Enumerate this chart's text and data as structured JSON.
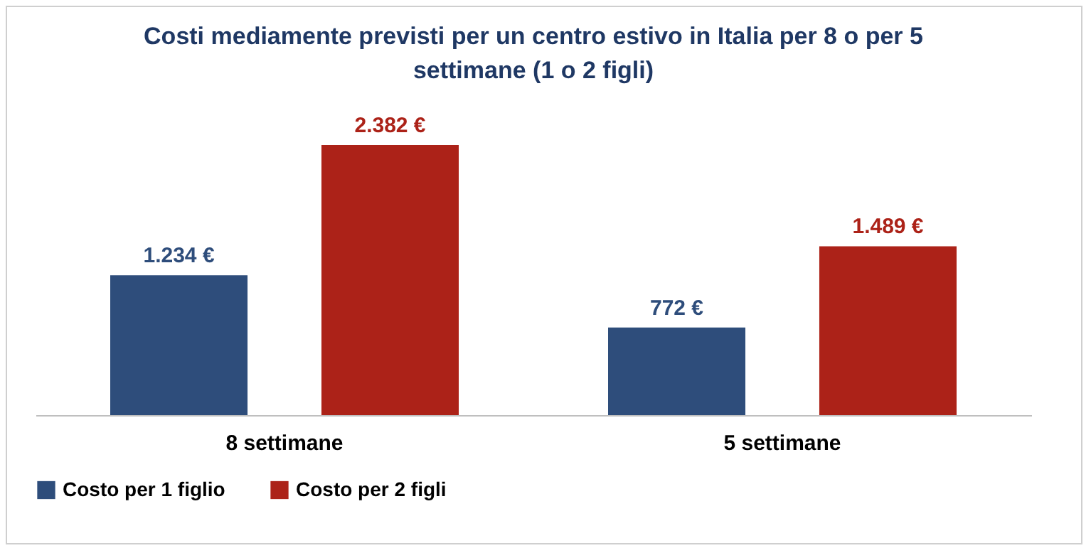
{
  "chart_data": {
    "type": "bar",
    "title": "Costi mediamente previsti per un centro estivo in Italia per 8 o per 5 settimane (1 o 2 figli)",
    "categories": [
      "8 settimane",
      "5 settimane"
    ],
    "series": [
      {
        "name": "Costo per 1 figlio",
        "color": "#2e4d7b",
        "values": [
          1234,
          772
        ],
        "value_labels": [
          "1.234 €",
          "772 €"
        ]
      },
      {
        "name": "Costo per 2 figli",
        "color": "#ac2218",
        "values": [
          2382,
          1489
        ],
        "value_labels": [
          "2.382 €",
          "1.489 €"
        ]
      }
    ],
    "legend": "bottom",
    "grid": false
  }
}
